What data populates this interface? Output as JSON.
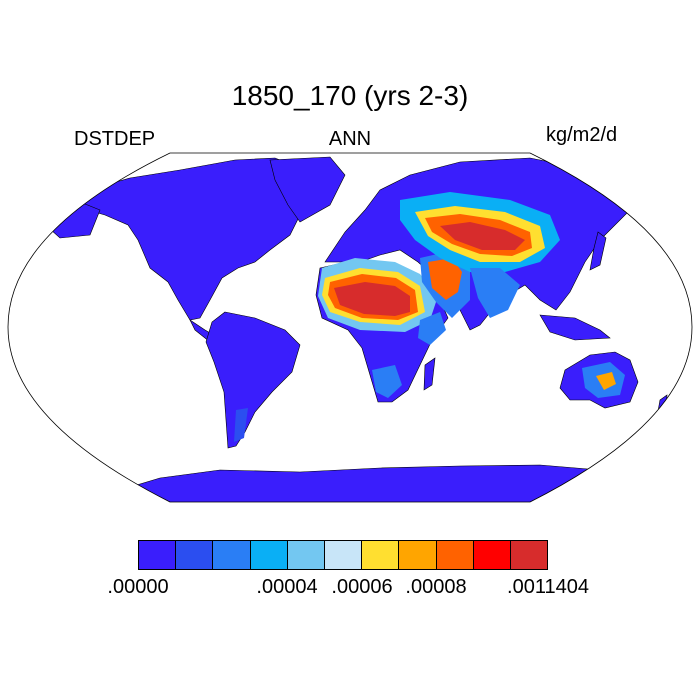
{
  "title": "1850_170 (yrs 2-3)",
  "left_string": "DSTDEP",
  "center_string": "ANN",
  "right_string": "kg/m2/d",
  "projection": "robinson",
  "colors": {
    "land_low": "#3a1efc",
    "water": "#ffffff",
    "outline": "#000000"
  },
  "colorbar": {
    "colors": [
      "#3a1efc",
      "#2b4ef0",
      "#2a7ef5",
      "#0aaff5",
      "#73c7f1",
      "#c8e5f8",
      "#ffdf30",
      "#ffa500",
      "#ff6200",
      "#ff0000",
      "#d72c2c"
    ],
    "labels": [
      ".00000",
      ".00004",
      ".00006",
      ".00008",
      ".0011404"
    ]
  }
}
